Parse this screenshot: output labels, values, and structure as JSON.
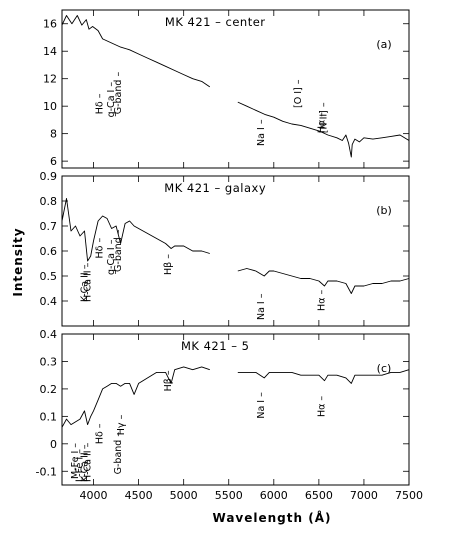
{
  "chart_data": [
    {
      "type": "line",
      "title": "MK 421 – center",
      "panel_label": "(a)",
      "xlim": [
        3650,
        7500
      ],
      "ylim": [
        5.5,
        17
      ],
      "yticks": [
        6,
        8,
        10,
        12,
        14,
        16
      ],
      "series": [
        {
          "x": [
            3650,
            3700,
            3760,
            3820,
            3870,
            3920,
            3950,
            3990,
            4050,
            4100,
            4200,
            4300,
            4400,
            4500,
            4600,
            4700,
            4800,
            4900,
            5000,
            5100,
            5200,
            5290
          ],
          "y": [
            15.9,
            16.6,
            16.0,
            16.6,
            15.9,
            16.3,
            15.6,
            15.8,
            15.5,
            14.9,
            14.6,
            14.3,
            14.1,
            13.8,
            13.5,
            13.2,
            12.9,
            12.6,
            12.3,
            12.0,
            11.8,
            11.4
          ]
        },
        {
          "x": [
            5600,
            5700,
            5800,
            5900,
            6000,
            6100,
            6200,
            6300,
            6400,
            6500,
            6600,
            6700,
            6760,
            6800,
            6830,
            6860,
            6870,
            6900,
            6950,
            7000,
            7100,
            7200,
            7300,
            7400,
            7500
          ],
          "y": [
            10.3,
            10.0,
            9.7,
            9.4,
            9.2,
            8.9,
            8.7,
            8.6,
            8.4,
            8.2,
            7.9,
            7.7,
            7.5,
            7.9,
            7.3,
            6.3,
            7.2,
            7.6,
            7.4,
            7.7,
            7.6,
            7.7,
            7.8,
            7.9,
            7.5
          ]
        }
      ],
      "line_labels": [
        {
          "text": "Hδ",
          "x": 4102
        },
        {
          "text": "g-Ca I",
          "x": 4227
        },
        {
          "text": "G-band",
          "x": 4305
        },
        {
          "text": "Na I",
          "x": 5893
        },
        {
          "text": "[O I]",
          "x": 6300
        },
        {
          "text": "[N II]",
          "x": 6583
        },
        {
          "text": "Hα",
          "x": 6563
        }
      ]
    },
    {
      "type": "line",
      "title": "MK 421 – galaxy",
      "panel_label": "(b)",
      "xlim": [
        3650,
        7500
      ],
      "ylim": [
        0.3,
        0.9
      ],
      "yticks": [
        0.4,
        0.5,
        0.6,
        0.7,
        0.8,
        0.9
      ],
      "series": [
        {
          "x": [
            3650,
            3700,
            3750,
            3800,
            3850,
            3900,
            3934,
            3968,
            4000,
            4050,
            4100,
            4150,
            4200,
            4250,
            4300,
            4350,
            4400,
            4450,
            4500,
            4600,
            4700,
            4800,
            4861,
            4900,
            5000,
            5100,
            5200,
            5290
          ],
          "y": [
            0.72,
            0.81,
            0.68,
            0.7,
            0.66,
            0.68,
            0.56,
            0.58,
            0.64,
            0.72,
            0.74,
            0.73,
            0.69,
            0.7,
            0.63,
            0.71,
            0.72,
            0.7,
            0.69,
            0.67,
            0.65,
            0.63,
            0.61,
            0.62,
            0.62,
            0.6,
            0.6,
            0.59
          ]
        },
        {
          "x": [
            5600,
            5700,
            5800,
            5893,
            5950,
            6000,
            6100,
            6200,
            6300,
            6400,
            6500,
            6563,
            6600,
            6700,
            6800,
            6860,
            6900,
            7000,
            7100,
            7200,
            7300,
            7400,
            7500
          ],
          "y": [
            0.52,
            0.53,
            0.52,
            0.5,
            0.52,
            0.52,
            0.51,
            0.5,
            0.49,
            0.49,
            0.48,
            0.46,
            0.48,
            0.48,
            0.47,
            0.43,
            0.46,
            0.46,
            0.47,
            0.47,
            0.48,
            0.48,
            0.49
          ]
        }
      ],
      "line_labels": [
        {
          "text": "K-Ca II",
          "x": 3934
        },
        {
          "text": "H-Ca II",
          "x": 3968
        },
        {
          "text": "Hδ",
          "x": 4102
        },
        {
          "text": "g-Ca I",
          "x": 4227
        },
        {
          "text": "G-band",
          "x": 4305
        },
        {
          "text": "Hβ",
          "x": 4861
        },
        {
          "text": "Na I",
          "x": 5893
        },
        {
          "text": "Hα",
          "x": 6563
        }
      ]
    },
    {
      "type": "line",
      "title": "MK 421 – 5",
      "panel_label": "(c)",
      "xlim": [
        3650,
        7500
      ],
      "ylim": [
        -0.15,
        0.4
      ],
      "yticks": [
        -0.1,
        0,
        0.1,
        0.2,
        0.3,
        0.4
      ],
      "series": [
        {
          "x": [
            3650,
            3700,
            3750,
            3800,
            3850,
            3900,
            3934,
            3968,
            4000,
            4050,
            4100,
            4150,
            4200,
            4250,
            4300,
            4350,
            4400,
            4450,
            4500,
            4600,
            4700,
            4800,
            4861,
            4900,
            5000,
            5100,
            5200,
            5290
          ],
          "y": [
            0.06,
            0.09,
            0.07,
            0.08,
            0.09,
            0.12,
            0.07,
            0.1,
            0.12,
            0.16,
            0.2,
            0.21,
            0.22,
            0.22,
            0.21,
            0.22,
            0.22,
            0.18,
            0.22,
            0.24,
            0.26,
            0.26,
            0.22,
            0.27,
            0.28,
            0.27,
            0.28,
            0.27
          ]
        },
        {
          "x": [
            5600,
            5700,
            5800,
            5893,
            5950,
            6000,
            6100,
            6200,
            6300,
            6400,
            6500,
            6563,
            6600,
            6700,
            6800,
            6860,
            6900,
            7000,
            7100,
            7200,
            7300,
            7400,
            7500
          ],
          "y": [
            0.26,
            0.26,
            0.26,
            0.24,
            0.26,
            0.26,
            0.26,
            0.26,
            0.25,
            0.25,
            0.25,
            0.23,
            0.25,
            0.25,
            0.24,
            0.22,
            0.25,
            0.25,
            0.25,
            0.25,
            0.26,
            0.26,
            0.27
          ]
        }
      ],
      "line_labels": [
        {
          "text": "M-Fe I",
          "x": 3830
        },
        {
          "text": "L-Fe I",
          "x": 3880
        },
        {
          "text": "K-Ca II",
          "x": 3934
        },
        {
          "text": "H-Ca II",
          "x": 3968
        },
        {
          "text": "Hδ",
          "x": 4102
        },
        {
          "text": "G-band",
          "x": 4305
        },
        {
          "text": "Hγ",
          "x": 4340
        },
        {
          "text": "Hβ",
          "x": 4861
        },
        {
          "text": "Na I",
          "x": 5893
        },
        {
          "text": "Hα",
          "x": 6563
        }
      ]
    }
  ],
  "axes": {
    "xlabel": "Wavelength (Å)",
    "ylabel": "Intensity",
    "xticks": [
      4000,
      4500,
      5000,
      5500,
      6000,
      6500,
      7000,
      7500
    ]
  },
  "colors": {
    "ink": "#000000",
    "background": "#ffffff"
  }
}
